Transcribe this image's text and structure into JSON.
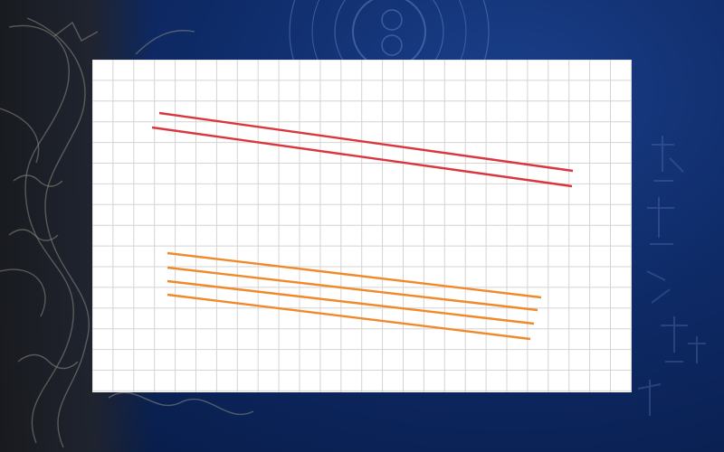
{
  "panel": {
    "title": ""
  },
  "colors": {
    "background_dark": "#0e2a66",
    "grid_line": "#d4d4d4",
    "red_pair": "#d9363e",
    "orange_group": "#ee8a2c"
  },
  "icons": {
    "dragon": "dragon-illustration",
    "seal": "circular-seal-emblem",
    "calligraphy": "calligraphy-watermark"
  },
  "figure": {
    "grid": true,
    "red_line_count": 2,
    "orange_line_count": 4
  }
}
